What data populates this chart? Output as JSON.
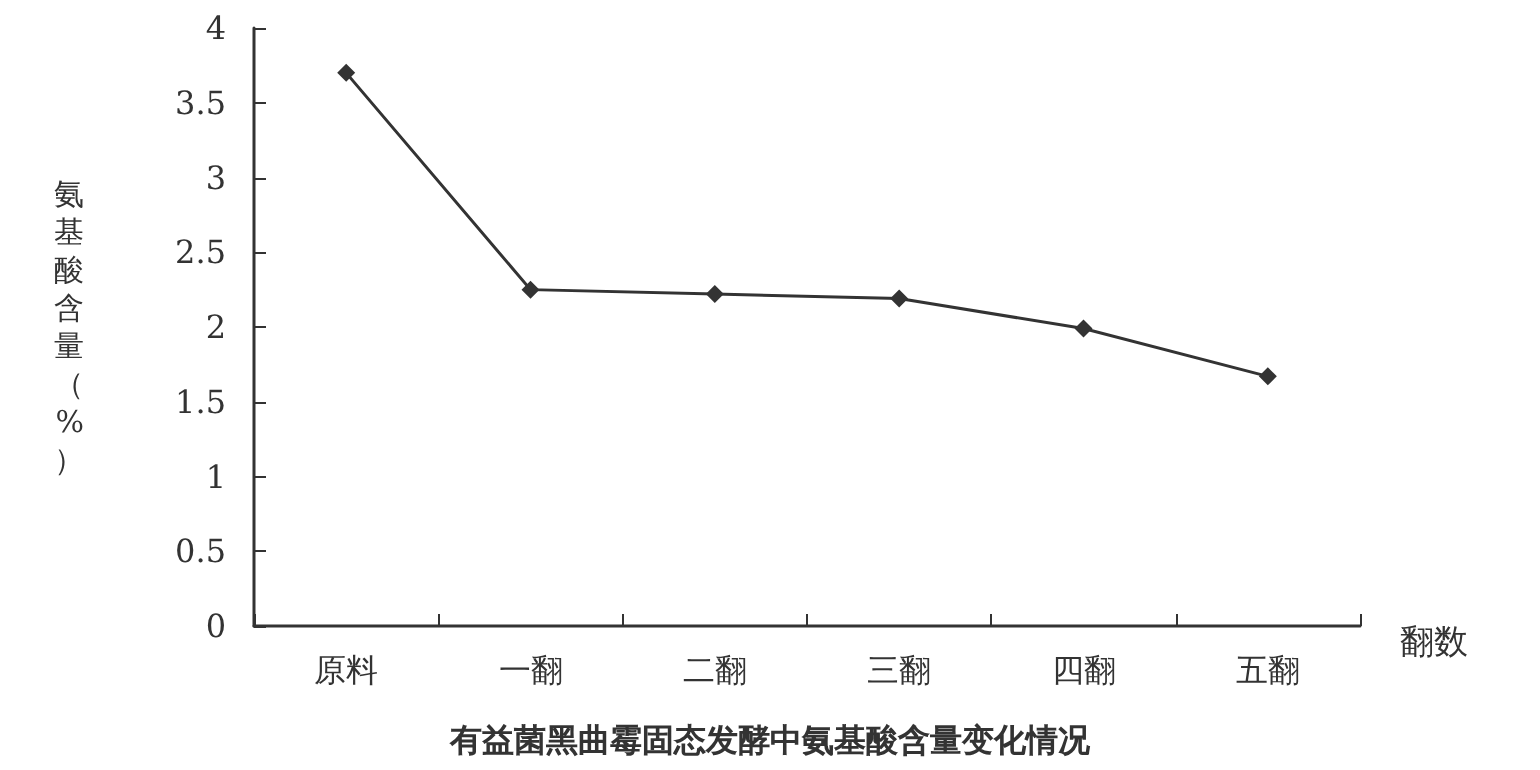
{
  "chart_data": {
    "type": "line",
    "title": "有益菌黑曲霉固态发酵中氨基酸含量变化情况",
    "xlabel": "翻数",
    "ylabel": "氨基酸含量（%）",
    "categories": [
      "原料",
      "一翻",
      "二翻",
      "三翻",
      "四翻",
      "五翻"
    ],
    "series": [
      {
        "color": "#333333",
        "values": [
          3.7,
          2.25,
          2.22,
          2.19,
          1.99,
          1.67
        ]
      }
    ],
    "ylim": [
      0,
      4
    ],
    "yticks": [
      0,
      0.5,
      1,
      1.5,
      2,
      2.5,
      3,
      3.5,
      4
    ],
    "grid": false,
    "marker": "diamond",
    "line_style": "solid"
  }
}
